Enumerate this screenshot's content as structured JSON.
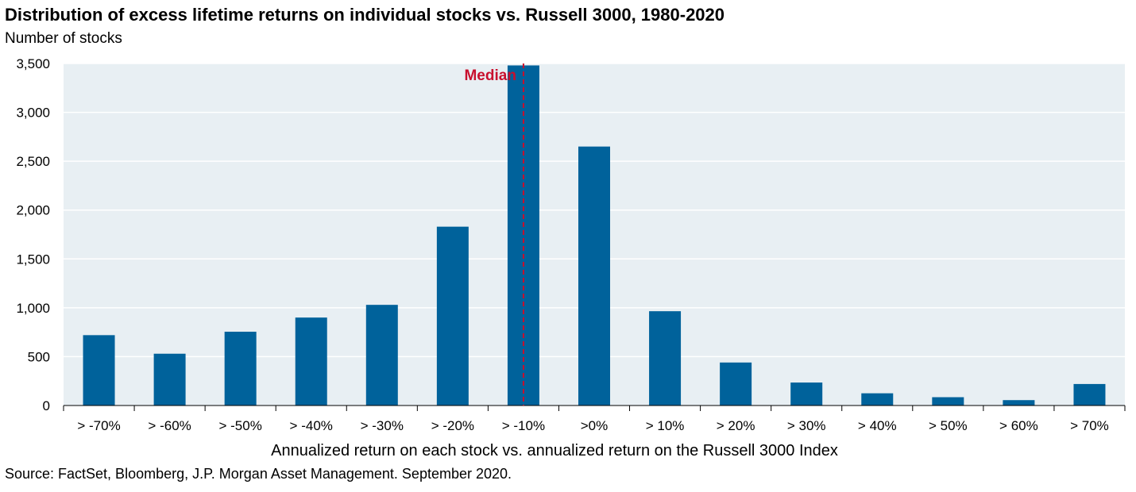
{
  "header": {
    "title": "Distribution of excess lifetime returns on individual stocks vs. Russell 3000, 1980-2020",
    "subtitle": "Number of stocks"
  },
  "footer": {
    "source": "Source: FactSet, Bloomberg, J.P. Morgan Asset Management. September 2020."
  },
  "chart_data": {
    "type": "bar",
    "title": "Distribution of excess lifetime returns on individual stocks vs. Russell 3000, 1980-2020",
    "ylabel": "Number of stocks",
    "xlabel": "Annualized return on each stock vs. annualized return on the Russell 3000 Index",
    "categories": [
      "> -70%",
      "> -60%",
      "> -50%",
      "> -40%",
      "> -30%",
      "> -20%",
      "> -10%",
      ">0%",
      "> 10%",
      "> 20%",
      "> 30%",
      "> 40%",
      "> 50%",
      "> 60%",
      "> 70%"
    ],
    "values": [
      720,
      530,
      755,
      900,
      1030,
      1830,
      3480,
      2650,
      965,
      440,
      235,
      125,
      85,
      55,
      220
    ],
    "ylim": [
      0,
      3500
    ],
    "yticks": [
      0,
      500,
      1000,
      1500,
      2000,
      2500,
      3000,
      3500
    ],
    "ytick_labels": [
      "0",
      "500",
      "1,000",
      "1,500",
      "2,000",
      "2,500",
      "3,000",
      "3,500"
    ],
    "grid": true,
    "plot_background": "#e8eff3",
    "bar_color": "#00629b",
    "annotation": {
      "text": "Median",
      "category": "> -10%",
      "color": "#c8102e",
      "line_style": "dashed"
    }
  }
}
